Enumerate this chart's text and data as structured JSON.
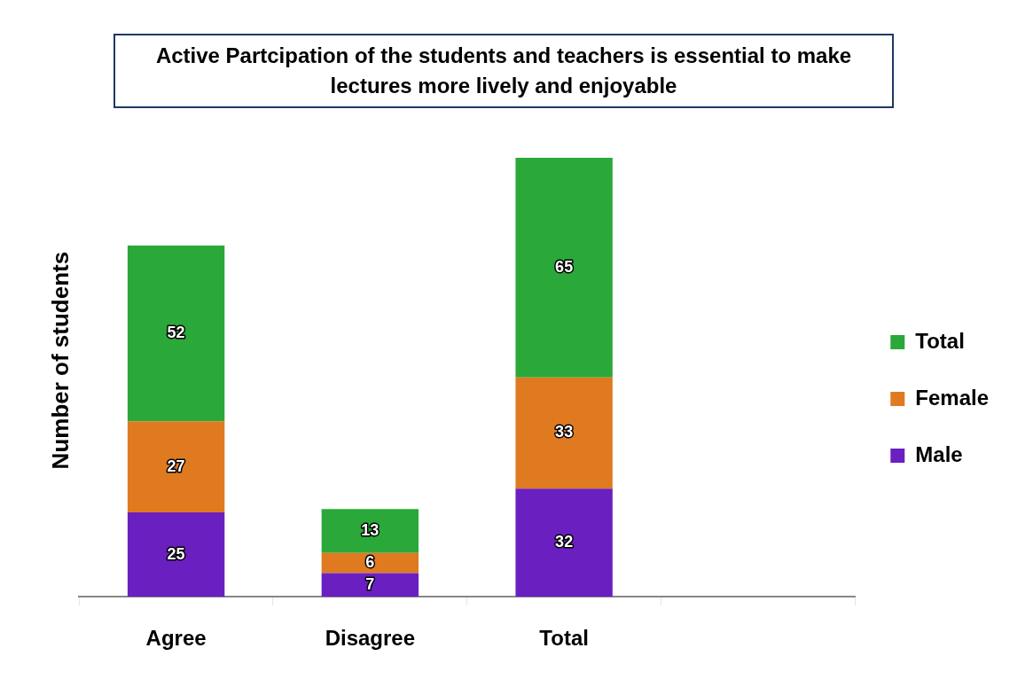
{
  "chart_data": {
    "type": "bar",
    "title": "Active Partcipation of the students and teachers is essential to make lectures more lively and enjoyable",
    "ylabel": "Number of students",
    "categories": [
      "Agree",
      "Disagree",
      "Total",
      null
    ],
    "stacked": true,
    "legend": "right",
    "tick_labels": "x",
    "grid": false,
    "data_labels": true,
    "series": [
      {
        "name": "Male",
        "color": "#6a1fc0",
        "values": [
          25,
          7,
          32,
          null
        ]
      },
      {
        "name": "Female",
        "color": "#e07a20",
        "values": [
          27,
          6,
          33,
          null
        ]
      },
      {
        "name": "Total",
        "color": "#2aa83a",
        "values": [
          52,
          13,
          65,
          null
        ]
      }
    ]
  }
}
